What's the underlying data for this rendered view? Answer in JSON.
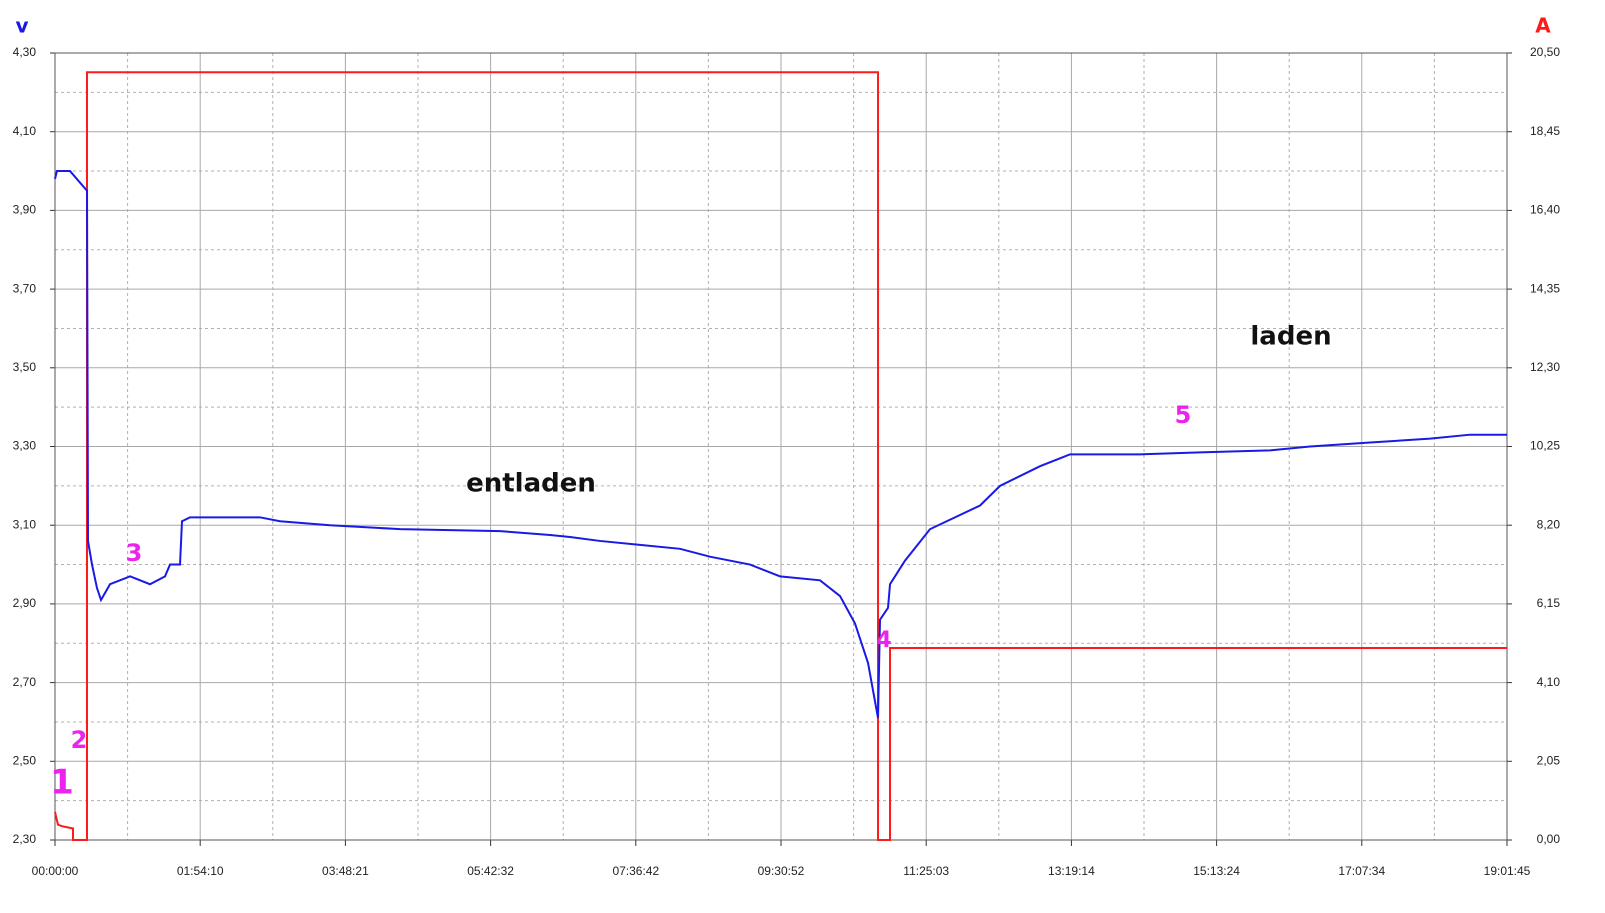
{
  "chart_data": {
    "type": "line",
    "y_label": "v",
    "y2_label": "A",
    "xlim": [
      0,
      68505
    ],
    "xticks": [
      {
        "value": 0,
        "label": "00:00:00"
      },
      {
        "value": 6850,
        "label": "01:54:10"
      },
      {
        "value": 13701,
        "label": "03:48:21"
      },
      {
        "value": 20552,
        "label": "05:42:32"
      },
      {
        "value": 27402,
        "label": "07:36:42"
      },
      {
        "value": 34252,
        "label": "09:30:52"
      },
      {
        "value": 41103,
        "label": "11:25:03"
      },
      {
        "value": 47954,
        "label": "13:19:14"
      },
      {
        "value": 54804,
        "label": "15:13:24"
      },
      {
        "value": 61654,
        "label": "17:07:34"
      },
      {
        "value": 68505,
        "label": "19:01:45"
      }
    ],
    "ylim": [
      2.3,
      4.3
    ],
    "yticks": [
      {
        "value": 2.3,
        "label": "2,30"
      },
      {
        "value": 2.5,
        "label": "2,50"
      },
      {
        "value": 2.7,
        "label": "2,70"
      },
      {
        "value": 2.9,
        "label": "2,90"
      },
      {
        "value": 3.1,
        "label": "3,10"
      },
      {
        "value": 3.3,
        "label": "3,30"
      },
      {
        "value": 3.5,
        "label": "3,50"
      },
      {
        "value": 3.7,
        "label": "3,70"
      },
      {
        "value": 3.9,
        "label": "3,90"
      },
      {
        "value": 4.1,
        "label": "4,10"
      },
      {
        "value": 4.3,
        "label": "4,30"
      }
    ],
    "y2lim": [
      0,
      20.5
    ],
    "y2ticks": [
      {
        "value": 0,
        "label": "0,00"
      },
      {
        "value": 2.05,
        "label": "2,05"
      },
      {
        "value": 4.1,
        "label": "4,10"
      },
      {
        "value": 6.15,
        "label": "6,15"
      },
      {
        "value": 8.2,
        "label": "8,20"
      },
      {
        "value": 10.25,
        "label": "10,25"
      },
      {
        "value": 12.3,
        "label": "12,30"
      },
      {
        "value": 14.35,
        "label": "14,35"
      },
      {
        "value": 16.4,
        "label": "16,40"
      },
      {
        "value": 18.45,
        "label": "18,45"
      },
      {
        "value": 20.5,
        "label": "20,50"
      }
    ],
    "grid": true,
    "series": [
      {
        "color": "#1a1ae6",
        "axis": "y",
        "x": [
          0,
          94,
          708,
          1510,
          1557,
          1746,
          1982,
          2171,
          2595,
          3539,
          4482,
          5190,
          5426,
          5898,
          5992,
          6369,
          9672,
          10616,
          12975,
          16277,
          20995,
          23354,
          24298,
          25713,
          27600,
          29488,
          30903,
          32790,
          34206,
          36093,
          37037,
          37745,
          38358,
          38830,
          38924,
          39302,
          39396,
          40104,
          41284,
          43643,
          44587,
          46474,
          47418,
          47890,
          51193,
          54024,
          57327,
          59214,
          62045,
          64876,
          66763,
          68505
        ],
        "values": [
          3.98,
          4.0,
          4.0,
          3.95,
          3.06,
          3.0,
          2.94,
          2.91,
          2.95,
          2.97,
          2.95,
          2.97,
          3.0,
          3.0,
          3.11,
          3.12,
          3.12,
          3.11,
          3.1,
          3.09,
          3.085,
          3.075,
          3.07,
          3.06,
          3.05,
          3.04,
          3.02,
          3.0,
          2.97,
          2.96,
          2.92,
          2.85,
          2.75,
          2.61,
          2.86,
          2.89,
          2.95,
          3.01,
          3.09,
          3.15,
          3.2,
          3.25,
          3.27,
          3.28,
          3.28,
          3.285,
          3.29,
          3.3,
          3.31,
          3.32,
          3.33,
          3.33
        ]
      },
      {
        "color": "#ff1a1a",
        "axis": "y2",
        "x": [
          0,
          140,
          330,
          849,
          849,
          1510,
          1510,
          38830,
          38830,
          39396,
          39396,
          68505
        ],
        "values": [
          0.73,
          0.4,
          0.36,
          0.3,
          0,
          0,
          20.0,
          20.0,
          0,
          0,
          5.0,
          5.0
        ]
      }
    ],
    "annotations": [
      "entladen",
      "laden",
      "1",
      "2",
      "3",
      "4",
      "5"
    ]
  }
}
